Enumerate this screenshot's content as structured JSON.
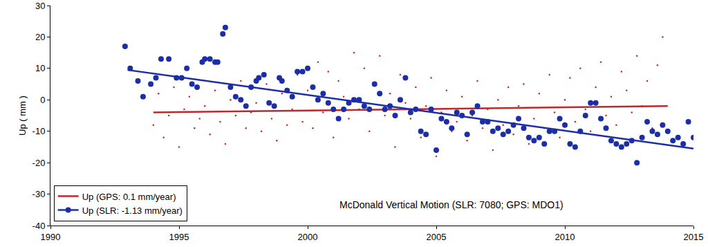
{
  "chart_data": {
    "type": "scatter",
    "ylabel": "Up ( mm )",
    "xlim": [
      1990,
      2015
    ],
    "xticks": [
      1990,
      1995,
      2000,
      2005,
      2010,
      2015
    ],
    "ylim": [
      -40,
      30
    ],
    "yticks": [
      -40,
      -30,
      -20,
      -10,
      0,
      10,
      20,
      30
    ],
    "grid": false,
    "legend": "lower left",
    "annotations": [
      {
        "text": "McDonald Vertical Motion (SLR: 7080; GPS: MDO1)",
        "x": 2005.6,
        "y": -33.4
      }
    ],
    "series": [
      {
        "name": "Up (GPS: 0.1 mm/year)",
        "color": "#c0272d",
        "marker": "dot",
        "line_style": "solid",
        "x": [
          1994.0,
          1994.2,
          1994.4,
          1994.6,
          1994.8,
          1995.0,
          1995.2,
          1995.4,
          1995.6,
          1995.8,
          1996.0,
          1996.2,
          1996.4,
          1996.6,
          1996.8,
          1997.0,
          1997.2,
          1997.4,
          1997.6,
          1997.8,
          1998.0,
          1998.2,
          1998.4,
          1998.6,
          1998.8,
          1999.0,
          1999.2,
          1999.4,
          1999.6,
          1999.8,
          2000.0,
          2000.2,
          2000.4,
          2000.6,
          2000.8,
          2001.0,
          2001.2,
          2001.4,
          2001.6,
          2001.8,
          2002.0,
          2002.2,
          2002.4,
          2002.6,
          2002.8,
          2003.0,
          2003.2,
          2003.4,
          2003.6,
          2003.8,
          2004.0,
          2004.2,
          2004.4,
          2004.6,
          2004.8,
          2005.0,
          2005.2,
          2005.4,
          2005.6,
          2005.8,
          2006.0,
          2006.2,
          2006.4,
          2006.6,
          2006.8,
          2007.0,
          2007.2,
          2007.4,
          2007.6,
          2007.8,
          2008.0,
          2008.2,
          2008.4,
          2008.6,
          2008.8,
          2009.0,
          2009.2,
          2009.4,
          2009.6,
          2009.8,
          2010.0,
          2010.2,
          2010.4,
          2010.6,
          2010.8,
          2011.0,
          2011.2,
          2011.4,
          2011.6,
          2011.8,
          2012.0,
          2012.2,
          2012.4,
          2012.6,
          2012.8,
          2013.0,
          2013.2,
          2013.4,
          2013.6,
          2013.8
        ],
        "values": [
          -8,
          2,
          -12,
          -5,
          4,
          -15,
          -3,
          1,
          -9,
          -6,
          -2,
          -11,
          3,
          -7,
          -14,
          0,
          -5,
          6,
          -9,
          -4,
          -1,
          -10,
          5,
          -6,
          -13,
          2,
          -8,
          -3,
          8,
          -7,
          3,
          -9,
          12,
          -4,
          9,
          -12,
          6,
          1,
          -6,
          15,
          -3,
          10,
          -10,
          5,
          14,
          -5,
          2,
          -15,
          8,
          -1,
          -6,
          4,
          -12,
          -2,
          7,
          -18,
          -4,
          3,
          -10,
          -7,
          1,
          -13,
          -5,
          6,
          -9,
          -3,
          -16,
          0,
          -8,
          4,
          -11,
          -2,
          5,
          -14,
          -6,
          2,
          -9,
          8,
          -4,
          -12,
          0,
          7,
          -7,
          10,
          -3,
          -10,
          4,
          12,
          -5,
          1,
          -8,
          9,
          3,
          -4,
          14,
          -2,
          6,
          -9,
          11,
          20
        ],
        "trend": {
          "x": [
            1994,
            2014
          ],
          "values": [
            -4,
            -2
          ]
        }
      },
      {
        "name": "Up (SLR: -1.13 mm/year)",
        "color": "#1c2ea6",
        "marker": "circle",
        "line_style": "solid",
        "x": [
          1992.9,
          1993.1,
          1993.4,
          1993.6,
          1993.9,
          1994.1,
          1994.3,
          1994.6,
          1994.9,
          1995.1,
          1995.3,
          1995.5,
          1995.7,
          1995.9,
          1996.0,
          1996.2,
          1996.4,
          1996.5,
          1996.7,
          1996.8,
          1997.0,
          1997.2,
          1997.4,
          1997.6,
          1997.8,
          1998.0,
          1998.1,
          1998.3,
          1998.5,
          1998.7,
          1998.9,
          1999.0,
          1999.2,
          1999.4,
          1999.6,
          1999.8,
          2000.0,
          2000.2,
          2000.4,
          2000.6,
          2000.8,
          2001.0,
          2001.2,
          2001.4,
          2001.6,
          2001.8,
          2002.0,
          2002.2,
          2002.4,
          2002.6,
          2002.8,
          2003.0,
          2003.2,
          2003.4,
          2003.6,
          2003.8,
          2004.0,
          2004.2,
          2004.4,
          2004.6,
          2004.8,
          2005.0,
          2005.2,
          2005.4,
          2005.6,
          2005.8,
          2006.0,
          2006.2,
          2006.4,
          2006.6,
          2006.8,
          2007.0,
          2007.2,
          2007.4,
          2007.6,
          2007.8,
          2008.0,
          2008.2,
          2008.4,
          2008.6,
          2008.8,
          2009.0,
          2009.2,
          2009.4,
          2009.6,
          2009.8,
          2010.0,
          2010.2,
          2010.4,
          2010.6,
          2010.8,
          2011.0,
          2011.2,
          2011.4,
          2011.6,
          2011.8,
          2012.0,
          2012.2,
          2012.4,
          2012.6,
          2012.8,
          2013.0,
          2013.2,
          2013.4,
          2013.6,
          2013.8,
          2014.0,
          2014.2,
          2014.4,
          2014.6,
          2014.8,
          2015.0
        ],
        "values": [
          17,
          10,
          6,
          1,
          5,
          7,
          13,
          13,
          7,
          7,
          10,
          5,
          4,
          12,
          13,
          13,
          12,
          12,
          21,
          23,
          4,
          1,
          0,
          -2,
          4,
          6,
          7,
          8,
          -1,
          -2,
          7,
          6,
          3,
          1,
          9,
          9,
          10,
          4,
          0,
          2,
          -1,
          -3,
          -6,
          -3,
          -1,
          0,
          0,
          -2,
          -3,
          5,
          2,
          -3,
          -2,
          -5,
          0,
          7,
          -4,
          -3,
          -10,
          -11,
          -3,
          -16,
          -6,
          -7,
          -9,
          -4,
          -5,
          -11,
          -4,
          -2,
          -7,
          -7,
          -10,
          -9,
          -11,
          -10,
          -8,
          -6,
          -9,
          -12,
          -13,
          -12,
          -14,
          -10,
          -10,
          -6,
          -8,
          -14,
          -15,
          -10,
          -5,
          -1,
          -1,
          -6,
          -9,
          -13,
          -14,
          -15,
          -14,
          -13,
          -20,
          -12,
          -7,
          -10,
          -11,
          -8,
          -10,
          -13,
          -12,
          -14,
          -7,
          -12
        ],
        "trend": {
          "x": [
            1993,
            2015
          ],
          "values": [
            9.5,
            -15.5
          ]
        }
      }
    ]
  }
}
